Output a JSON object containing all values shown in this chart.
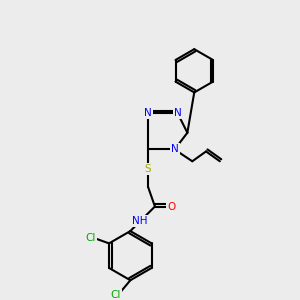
{
  "bg_color": "#ececec",
  "bond_color": "#000000",
  "bond_width": 1.5,
  "atom_colors": {
    "N": "#0000FF",
    "O": "#FF0000",
    "S": "#AAAA00",
    "Cl": "#00AA00",
    "C": "#000000"
  },
  "font_size": 7.5
}
